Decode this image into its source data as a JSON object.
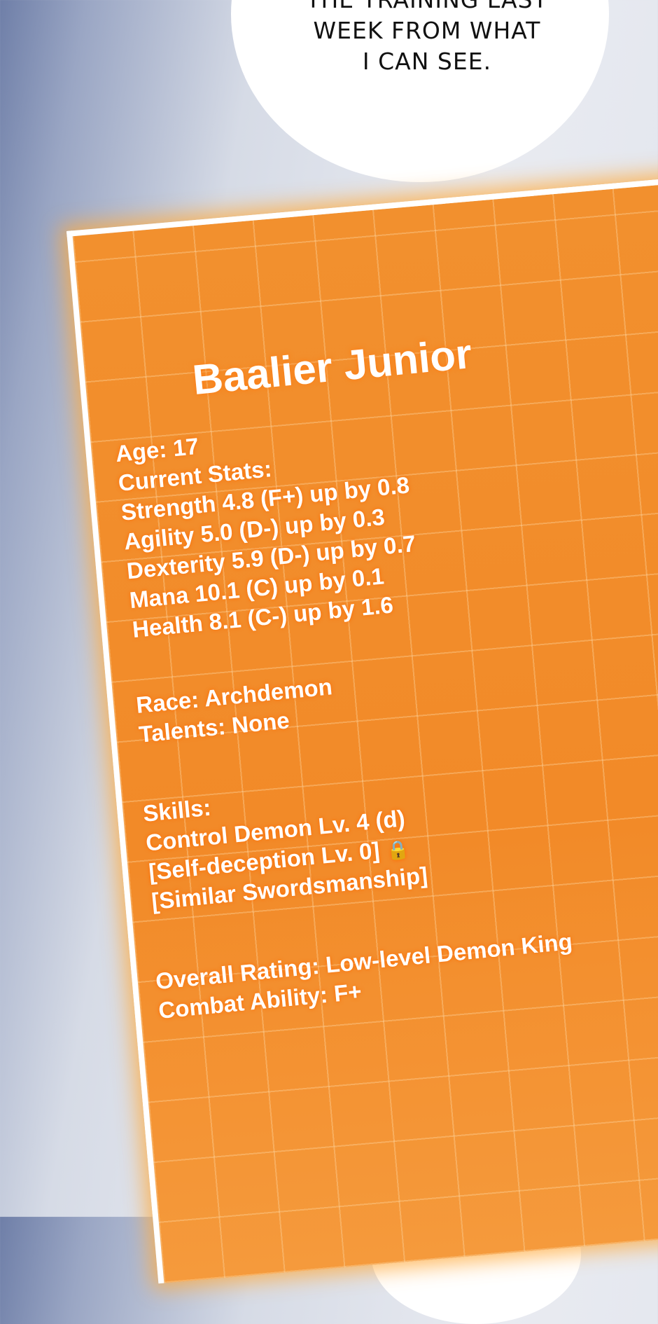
{
  "speech_bubble": {
    "lines": [
      "THE TRAINING LAST",
      "WEEK FROM WHAT",
      "I CAN SEE."
    ]
  },
  "status_panel": {
    "name": "Baalier Junior",
    "stats": [
      "Age: 17",
      "Current Stats:",
      "Strength 4.8 (F+) up by 0.8",
      "Agility 5.0 (D-) up by 0.3",
      "Dexterity 5.9 (D-) up by 0.7",
      "Mana 10.1 (C) up by 0.1",
      "Health 8.1 (C-) up by 1.6"
    ],
    "info": [
      "Race: Archdemon",
      "Talents: None"
    ],
    "skills": [
      "Skills:",
      "Control Demon Lv. 4 (d)",
      "[Self-deception Lv. 0]",
      "[Similar Swordsmanship]"
    ],
    "lock_icon": "lock-icon",
    "rating": [
      "Overall Rating: Low-level Demon King",
      "Combat Ability: F+"
    ]
  }
}
